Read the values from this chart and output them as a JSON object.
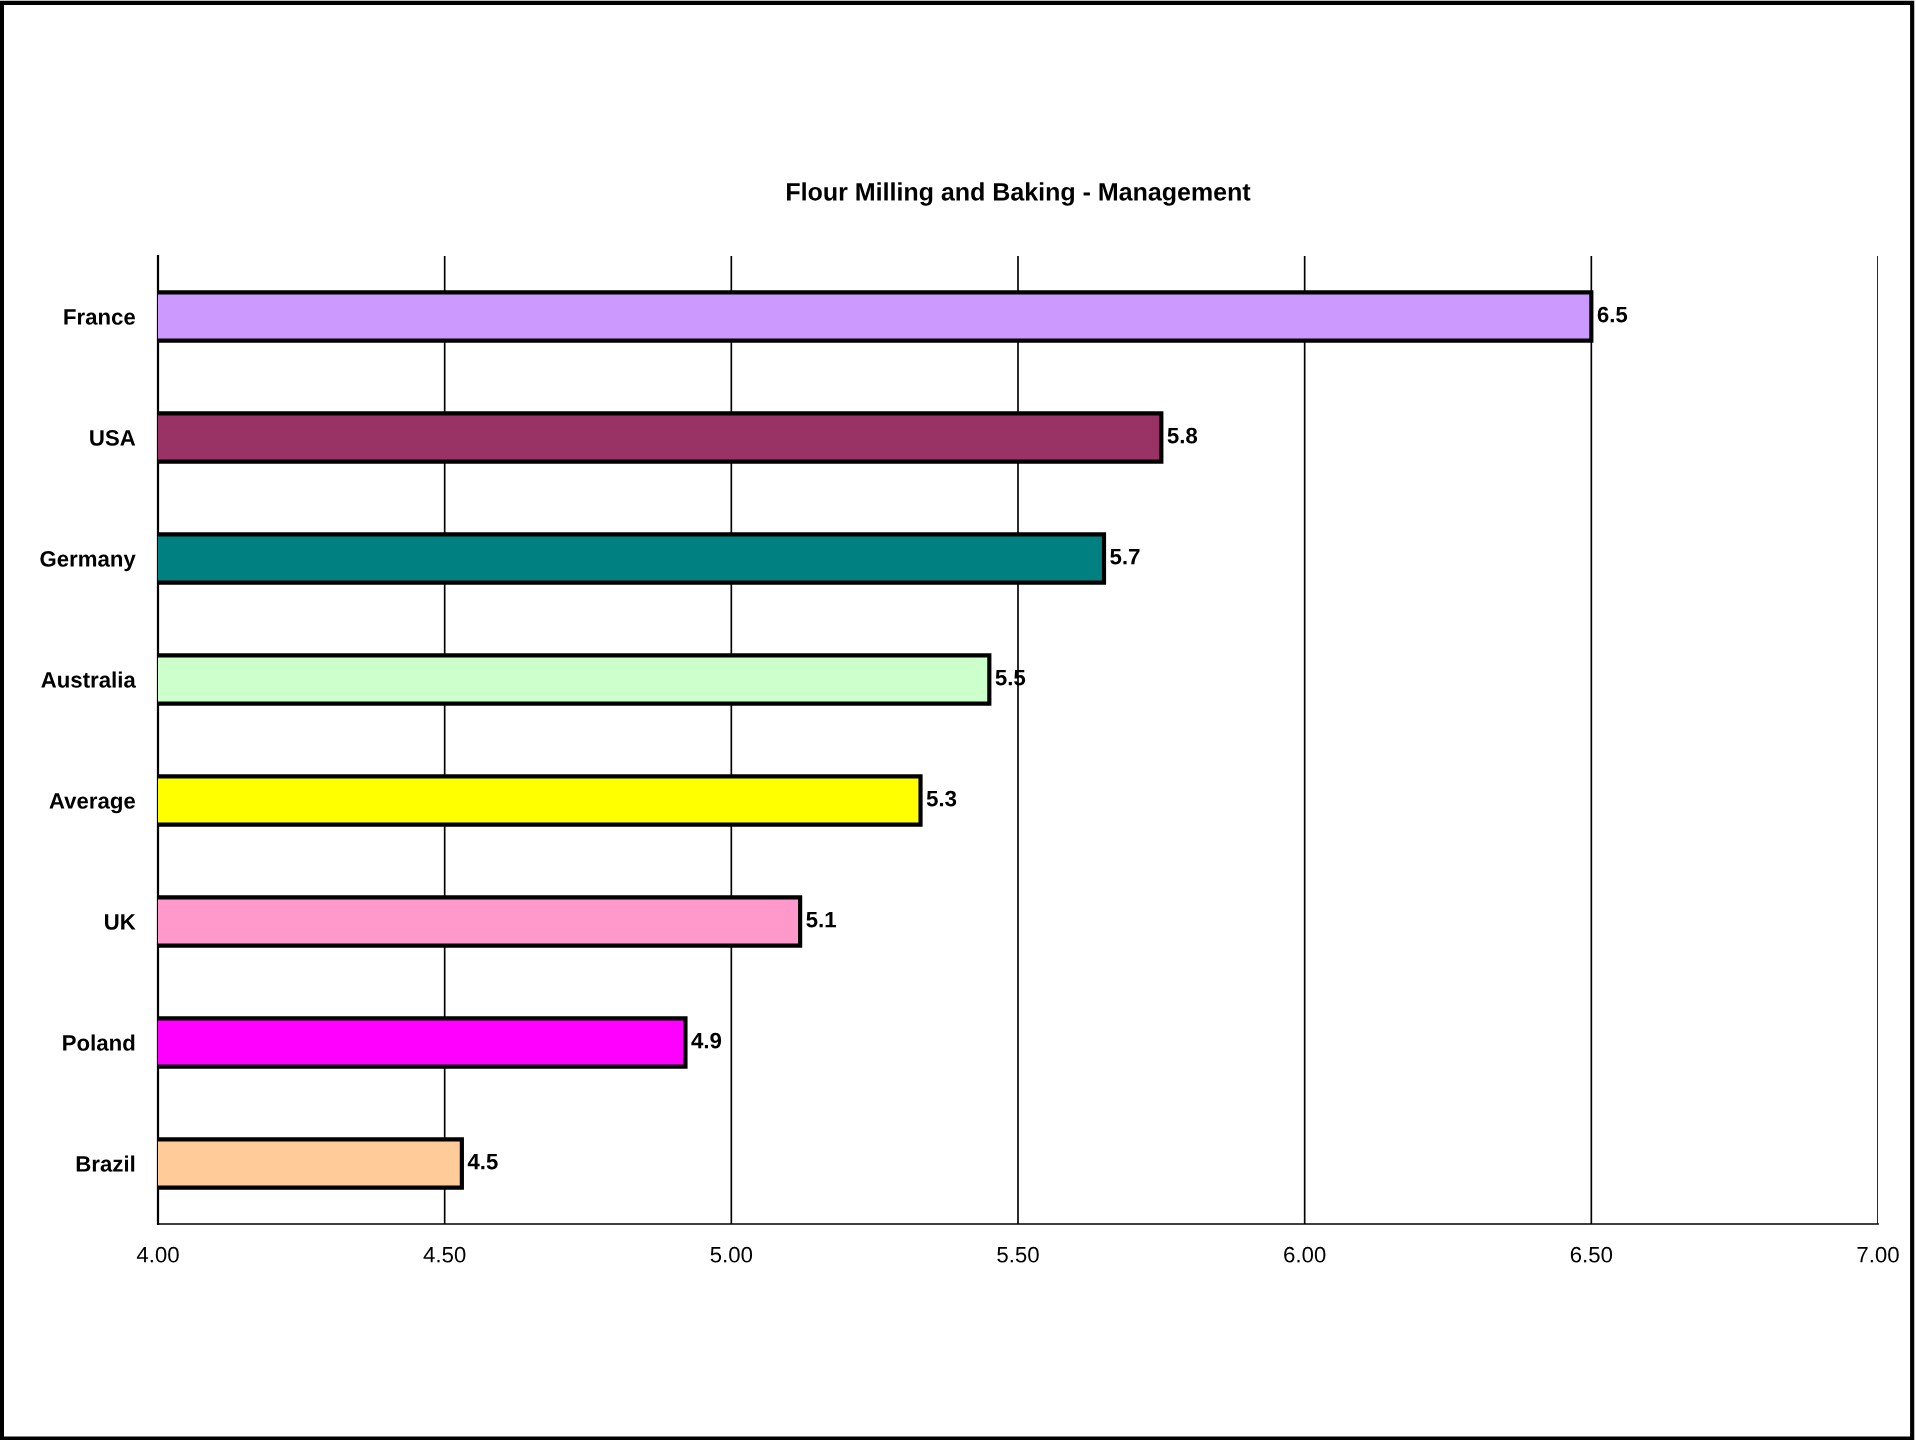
{
  "chart_data": {
    "type": "bar",
    "orientation": "horizontal",
    "title": "Flour Milling and Baking - Management",
    "categories": [
      "France",
      "USA",
      "Germany",
      "Australia",
      "Average",
      "UK",
      "Poland",
      "Brazil"
    ],
    "values": [
      6.5,
      5.75,
      5.65,
      5.45,
      5.33,
      5.12,
      4.92,
      4.53
    ],
    "value_labels": [
      "6.5",
      "5.8",
      "5.7",
      "5.5",
      "5.3",
      "5.1",
      "4.9",
      "4.5"
    ],
    "colors": [
      "#cc99ff",
      "#993366",
      "#008080",
      "#ccffcc",
      "#ffff00",
      "#ff99cc",
      "#ff00ff",
      "#ffcc99"
    ],
    "xlim": [
      4.0,
      7.0
    ],
    "xticks": [
      {
        "value": 4.0,
        "label": "4.00"
      },
      {
        "value": 4.5,
        "label": "4.50"
      },
      {
        "value": 5.0,
        "label": "5.00"
      },
      {
        "value": 5.5,
        "label": "5.50"
      },
      {
        "value": 6.0,
        "label": "6.00"
      },
      {
        "value": 6.5,
        "label": "6.50"
      },
      {
        "value": 7.0,
        "label": "7.00"
      }
    ],
    "grid": "x",
    "legend": false
  }
}
